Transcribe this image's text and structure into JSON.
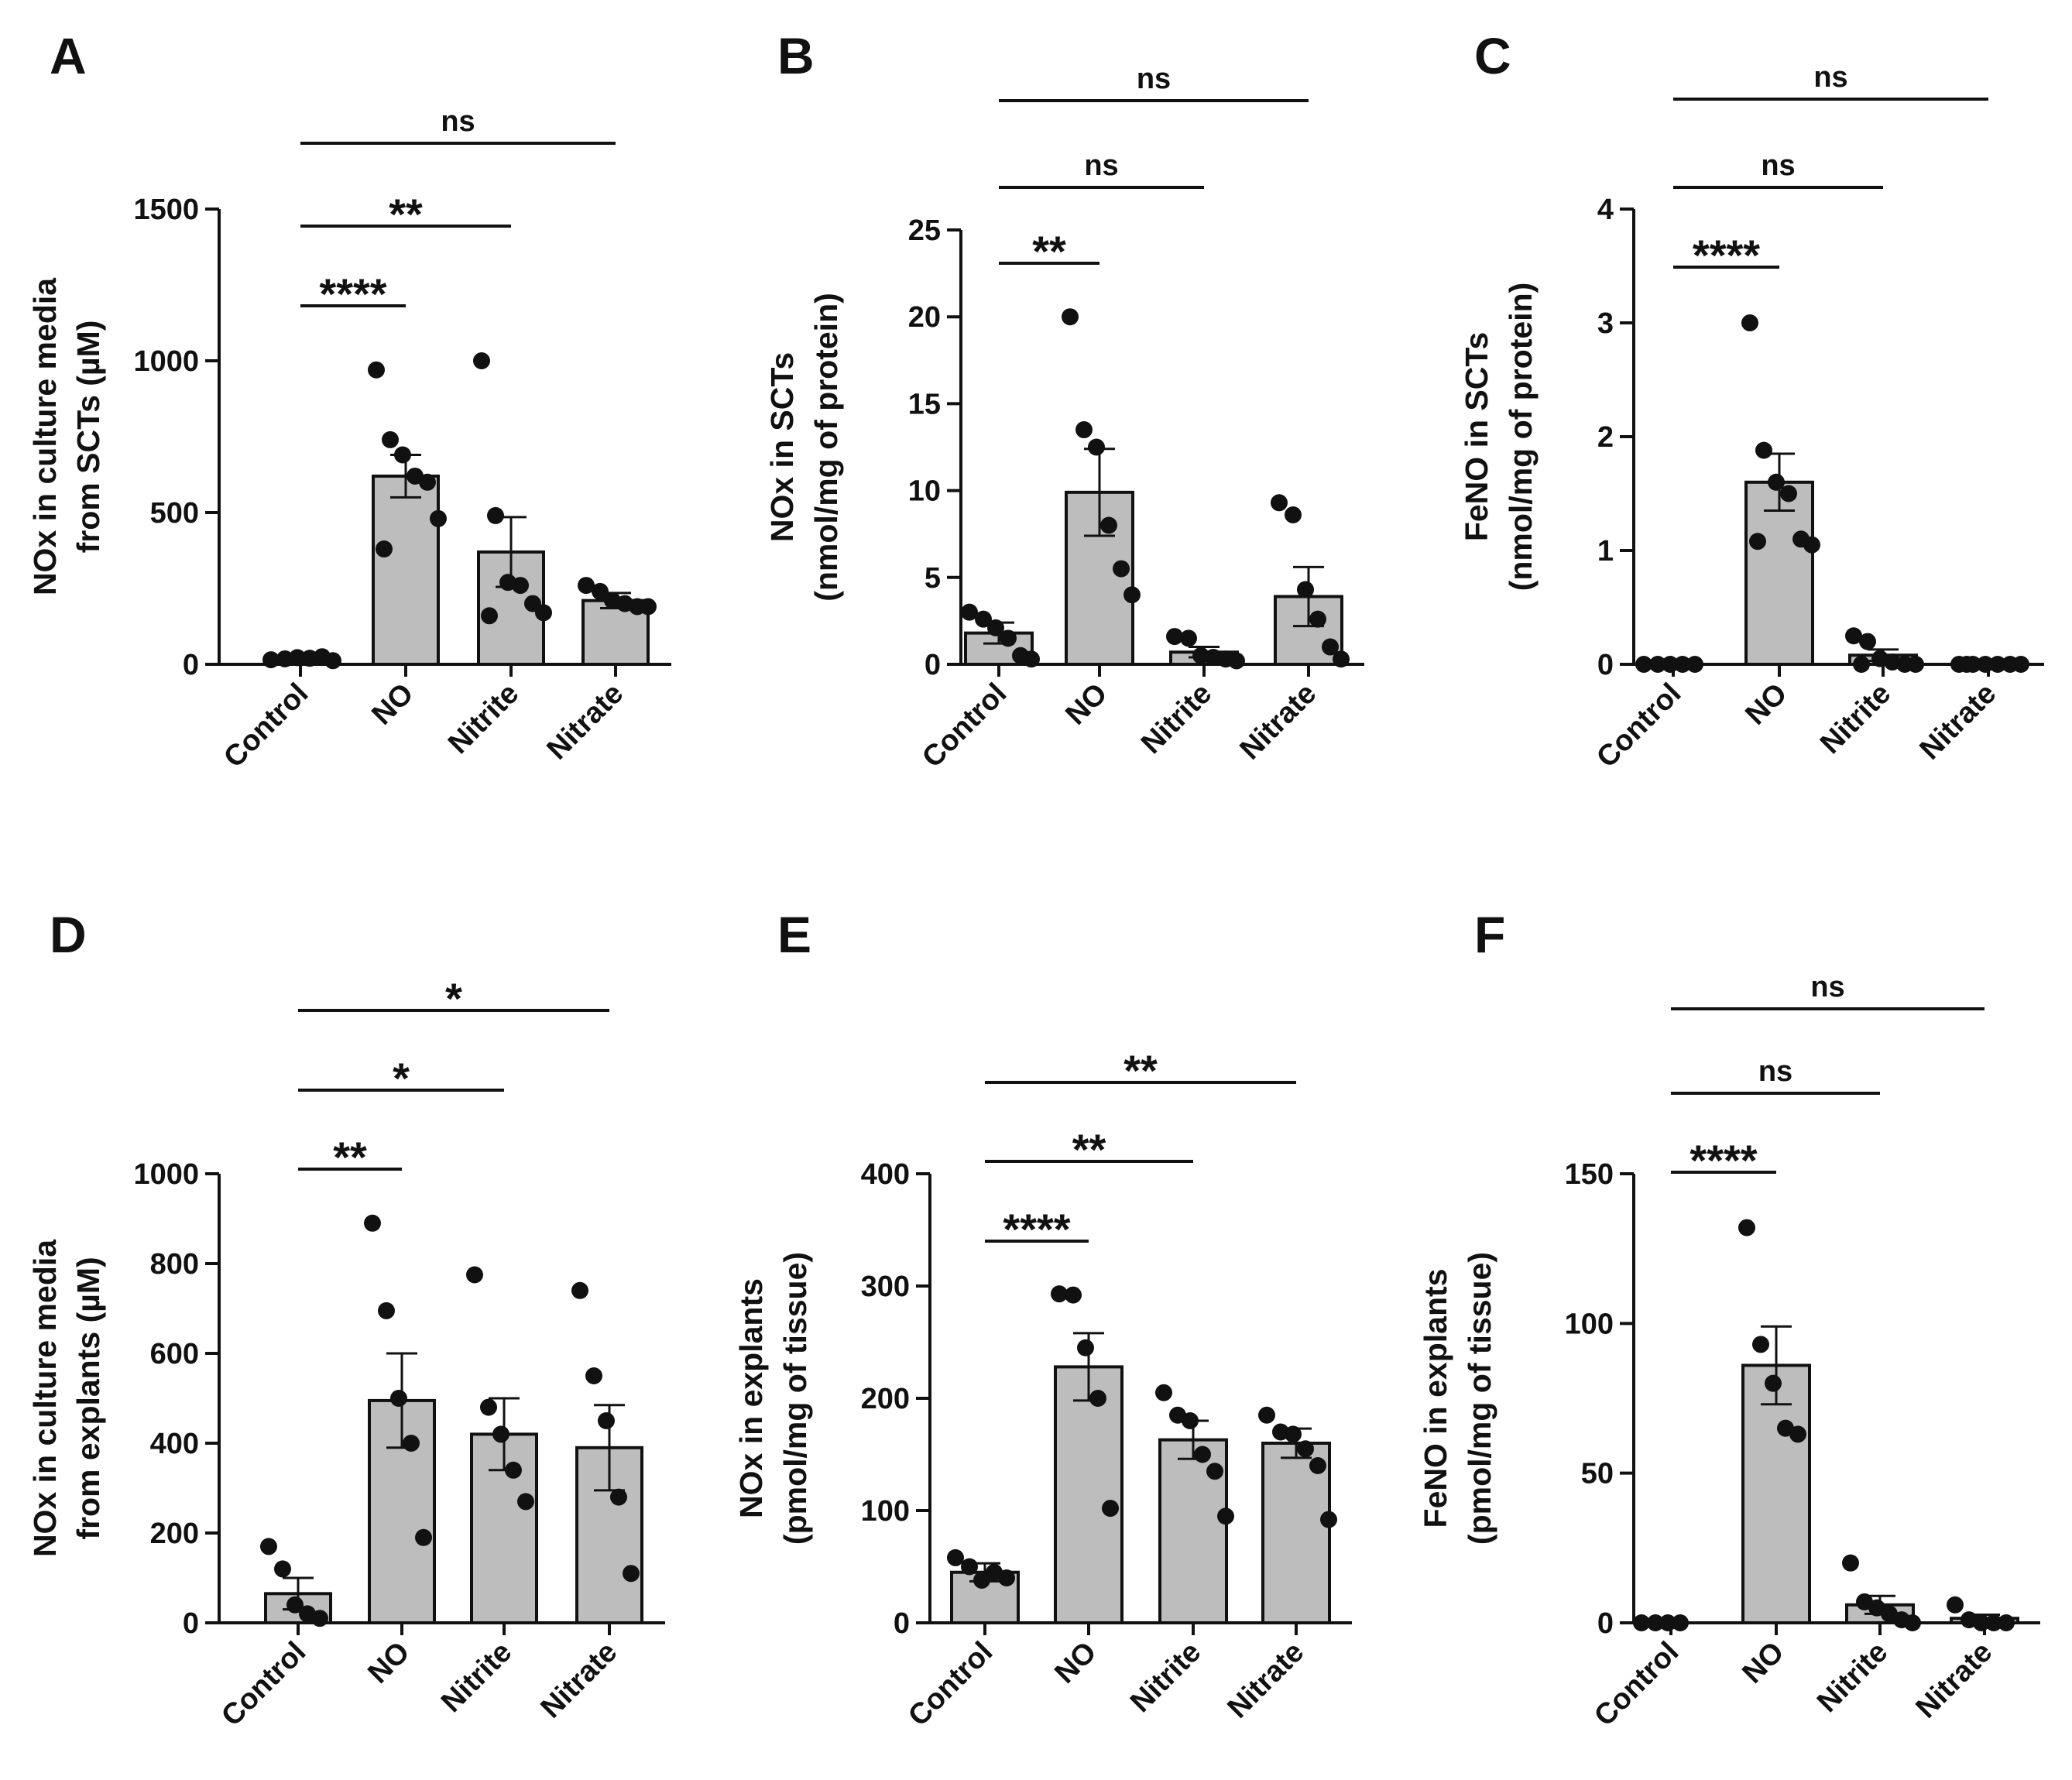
{
  "figure": {
    "background": "#ffffff",
    "bar_fill": "#bdbdbd",
    "ink": "#111111"
  },
  "chart_data": [
    {
      "panel": "A",
      "type": "bar",
      "categories": [
        "Control",
        "NO",
        "Nitrite",
        "Nitrate"
      ],
      "ylabel": [
        "NOx in culture media",
        "from SCTs (µM)"
      ],
      "ylim": [
        0,
        1500
      ],
      "yticks": [
        "0",
        "500",
        "1000",
        "1500"
      ],
      "values": [
        20,
        620,
        370,
        210
      ],
      "sem": [
        5,
        70,
        115,
        25
      ],
      "points": [
        [
          15,
          18,
          22,
          20,
          25,
          12
        ],
        [
          970,
          740,
          690,
          620,
          600,
          480,
          380
        ],
        [
          1000,
          490,
          270,
          260,
          200,
          170,
          160
        ],
        [
          260,
          240,
          210,
          200,
          190,
          190
        ]
      ],
      "comparisons": [
        {
          "from": "Control",
          "to": "NO",
          "label": "****"
        },
        {
          "from": "Control",
          "to": "Nitrite",
          "label": "**"
        },
        {
          "from": "Control",
          "to": "Nitrate",
          "label": "ns"
        }
      ]
    },
    {
      "panel": "B",
      "type": "bar",
      "categories": [
        "Control",
        "NO",
        "Nitrite",
        "Nitrate"
      ],
      "ylabel": [
        "NOx in SCTs",
        "(nmol/mg of protein)"
      ],
      "ylim": [
        0,
        25
      ],
      "yticks": [
        "0",
        "5",
        "10",
        "15",
        "20",
        "25"
      ],
      "values": [
        1.8,
        9.9,
        0.7,
        3.9
      ],
      "sem": [
        0.6,
        2.5,
        0.3,
        1.7
      ],
      "points": [
        [
          3.0,
          2.6,
          2.1,
          1.5,
          0.5,
          0.3
        ],
        [
          20,
          13.5,
          12.5,
          8.0,
          5.5,
          4.0
        ],
        [
          1.6,
          1.5,
          0.5,
          0.4,
          0.3,
          0.2
        ],
        [
          9.3,
          8.6,
          4.3,
          2.6,
          1.0,
          0.3
        ]
      ],
      "comparisons": [
        {
          "from": "Control",
          "to": "NO",
          "label": "**"
        },
        {
          "from": "Control",
          "to": "Nitrite",
          "label": "ns"
        },
        {
          "from": "Control",
          "to": "Nitrate",
          "label": "ns"
        }
      ]
    },
    {
      "panel": "C",
      "type": "bar",
      "categories": [
        "Control",
        "NO",
        "Nitrite",
        "Nitrate"
      ],
      "ylabel": [
        "FeNO in SCTs",
        "(nmol/mg of protein)"
      ],
      "ylim": [
        0,
        4
      ],
      "yticks": [
        "0",
        "1",
        "2",
        "3",
        "4"
      ],
      "values": [
        0.0,
        1.6,
        0.08,
        0.0
      ],
      "sem": [
        0.0,
        0.25,
        0.05,
        0.0
      ],
      "points": [
        [
          0,
          0,
          0,
          0,
          0
        ],
        [
          3.0,
          1.88,
          1.6,
          1.5,
          1.1,
          1.05,
          1.08
        ],
        [
          0.25,
          0.2,
          0.05,
          0.02,
          0,
          0,
          0
        ],
        [
          0,
          0,
          0,
          0,
          0,
          0,
          0
        ]
      ],
      "comparisons": [
        {
          "from": "Control",
          "to": "NO",
          "label": "****"
        },
        {
          "from": "Control",
          "to": "Nitrite",
          "label": "ns"
        },
        {
          "from": "Control",
          "to": "Nitrate",
          "label": "ns"
        }
      ]
    },
    {
      "panel": "D",
      "type": "bar",
      "categories": [
        "Control",
        "NO",
        "Nitrite",
        "Nitrate"
      ],
      "ylabel": [
        "NOx in culture media",
        "from explants (µM)"
      ],
      "ylim": [
        0,
        1000
      ],
      "yticks": [
        "0",
        "200",
        "400",
        "600",
        "800",
        "1000"
      ],
      "values": [
        65,
        495,
        420,
        390
      ],
      "sem": [
        35,
        105,
        80,
        95
      ],
      "points": [
        [
          170,
          120,
          40,
          20,
          10
        ],
        [
          890,
          695,
          500,
          400,
          190
        ],
        [
          775,
          480,
          420,
          340,
          270
        ],
        [
          740,
          550,
          450,
          280,
          110
        ]
      ],
      "comparisons": [
        {
          "from": "Control",
          "to": "NO",
          "label": "**"
        },
        {
          "from": "Control",
          "to": "Nitrite",
          "label": "*"
        },
        {
          "from": "Control",
          "to": "Nitrate",
          "label": "*"
        }
      ]
    },
    {
      "panel": "E",
      "type": "bar",
      "categories": [
        "Control",
        "NO",
        "Nitrite",
        "Nitrate"
      ],
      "ylabel": [
        "NOx in explants",
        "(pmol/mg of tissue)"
      ],
      "ylim": [
        0,
        400
      ],
      "yticks": [
        "0",
        "100",
        "200",
        "300",
        "400"
      ],
      "values": [
        45,
        228,
        163,
        160
      ],
      "sem": [
        8,
        30,
        17,
        13
      ],
      "points": [
        [
          58,
          50,
          38,
          45,
          40
        ],
        [
          293,
          292,
          245,
          200,
          102
        ],
        [
          205,
          185,
          180,
          150,
          135,
          95
        ],
        [
          185,
          170,
          168,
          155,
          140,
          92
        ]
      ],
      "comparisons": [
        {
          "from": "Control",
          "to": "NO",
          "label": "****"
        },
        {
          "from": "Control",
          "to": "Nitrite",
          "label": "**"
        },
        {
          "from": "Control",
          "to": "Nitrate",
          "label": "**"
        }
      ]
    },
    {
      "panel": "F",
      "type": "bar",
      "categories": [
        "Control",
        "NO",
        "Nitrite",
        "Nitrate"
      ],
      "ylabel": [
        "FeNO in explants",
        "(pmol/mg of tissue)"
      ],
      "ylim": [
        0,
        150
      ],
      "yticks": [
        "0",
        "50",
        "100",
        "150"
      ],
      "values": [
        0,
        86,
        6,
        1.5
      ],
      "sem": [
        0,
        13,
        3,
        1.2
      ],
      "points": [
        [
          0,
          0,
          0,
          0
        ],
        [
          132,
          93,
          80,
          65,
          63
        ],
        [
          20,
          7,
          5,
          3,
          1,
          0
        ],
        [
          6,
          1,
          0,
          0,
          0
        ]
      ],
      "comparisons": [
        {
          "from": "Control",
          "to": "NO",
          "label": "****"
        },
        {
          "from": "Control",
          "to": "Nitrite",
          "label": "ns"
        },
        {
          "from": "Control",
          "to": "Nitrate",
          "label": "ns"
        }
      ]
    }
  ]
}
